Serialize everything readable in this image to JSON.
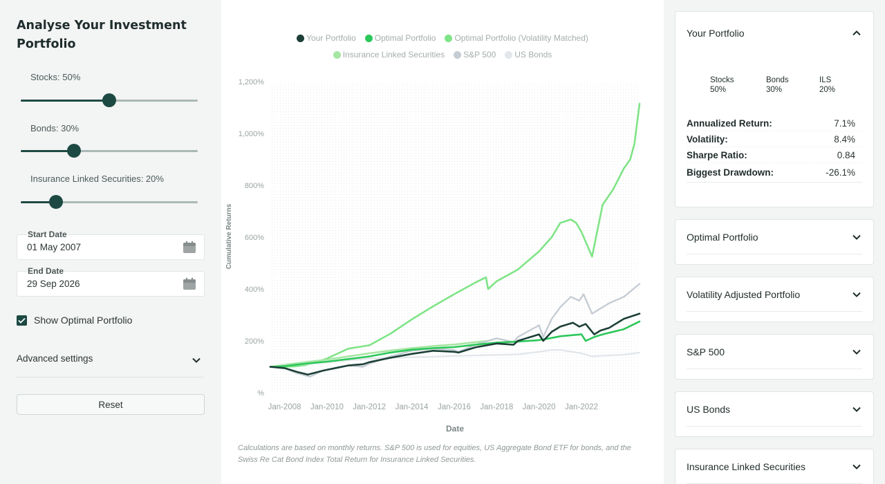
{
  "sidebar": {
    "title": "Analyse Your Investment Portfolio",
    "sliders": [
      {
        "label": "Stocks: 50%",
        "value": 50
      },
      {
        "label": "Bonds: 30%",
        "value": 30
      },
      {
        "label": "Insurance Linked Securities: 20%",
        "value": 20
      }
    ],
    "start_date": {
      "label": "Start Date",
      "value": "01 May 2007"
    },
    "end_date": {
      "label": "End Date",
      "value": "29 Sep 2026"
    },
    "show_optimal": {
      "label": "Show Optimal Portfolio",
      "checked": true
    },
    "advanced_label": "Advanced settings",
    "reset_label": "Reset"
  },
  "legend": [
    {
      "name": "Your Portfolio",
      "color": "#1c3f37"
    },
    {
      "name": "Optimal Portfolio",
      "color": "#2cc75a"
    },
    {
      "name": "Optimal Portfolio (Volatility Matched)",
      "color": "#7fe486"
    },
    {
      "name": "Insurance Linked Securities",
      "color": "#a5e6a2"
    },
    {
      "name": "S&P 500",
      "color": "#c5ccd3"
    },
    {
      "name": "US Bonds",
      "color": "#e3e6ea"
    }
  ],
  "chart_data": {
    "type": "line",
    "xlabel": "Date",
    "ylabel": "Cumulative Returns",
    "ylim": [
      0,
      1200
    ],
    "y_ticks": [
      "%",
      "200%",
      "400%",
      "600%",
      "800%",
      "1,000%",
      "1,200%"
    ],
    "x_ticks": [
      "Jan-2008",
      "Jan-2010",
      "Jan-2012",
      "Jan-2014",
      "Jan-2016",
      "Jan-2018",
      "Jan-2020",
      "Jan-2022"
    ],
    "series": [
      {
        "name": "Optimal Portfolio (Volatility Matched)",
        "color": "#7fe486",
        "x": [
          2007.33,
          2008.0,
          2008.5,
          2009.0,
          2009.5,
          2010.0,
          2011.0,
          2012.0,
          2013.0,
          2014.0,
          2015.0,
          2016.0,
          2017.0,
          2017.5,
          2017.6,
          2018.0,
          2019.0,
          2020.0,
          2020.6,
          2021.0,
          2021.5,
          2021.75,
          2022.0,
          2022.5,
          2023.0,
          2023.5,
          2024.0,
          2024.3,
          2024.5,
          2024.74
        ],
        "y": [
          100,
          100,
          102,
          107,
          118,
          132,
          170,
          183,
          228,
          283,
          333,
          380,
          425,
          445,
          400,
          430,
          475,
          545,
          600,
          655,
          668,
          655,
          620,
          525,
          725,
          785,
          865,
          900,
          960,
          1115
        ]
      },
      {
        "name": "Insurance Linked Securities",
        "color": "#a5e6a2",
        "x": [
          2007.33,
          2008.0,
          2009.0,
          2010.0,
          2011.0,
          2012.0,
          2013.0,
          2014.0,
          2015.0,
          2016.0,
          2017.0,
          2017.6
        ],
        "y": [
          100,
          108,
          118,
          128,
          140,
          152,
          163,
          172,
          180,
          186,
          195,
          200
        ]
      },
      {
        "name": "US Bonds",
        "color": "#e3e6ea",
        "x": [
          2007.33,
          2008.0,
          2009.0,
          2010.0,
          2011.0,
          2012.0,
          2013.0,
          2014.0,
          2015.0,
          2016.0,
          2017.0,
          2018.0,
          2019.0,
          2020.0,
          2020.6,
          2021.0,
          2022.0,
          2022.5,
          2023.0,
          2024.0,
          2024.74
        ],
        "y": [
          100,
          105,
          110,
          117,
          125,
          132,
          134,
          137,
          139,
          142,
          144,
          146,
          148,
          158,
          165,
          165,
          152,
          140,
          143,
          147,
          155
        ]
      },
      {
        "name": "S&P 500",
        "color": "#c5ccd3",
        "x": [
          2007.33,
          2008.0,
          2008.5,
          2009.2,
          2009.8,
          2010.5,
          2011.0,
          2011.7,
          2012.0,
          2013.0,
          2014.0,
          2015.0,
          2016.0,
          2016.2,
          2017.0,
          2018.0,
          2018.8,
          2019.0,
          2020.0,
          2020.2,
          2020.6,
          2021.0,
          2021.5,
          2021.9,
          2022.1,
          2022.5,
          2022.9,
          2023.3,
          2024.0,
          2024.74
        ],
        "y": [
          100,
          95,
          78,
          62,
          85,
          95,
          105,
          100,
          112,
          140,
          162,
          170,
          165,
          158,
          185,
          210,
          195,
          215,
          260,
          215,
          285,
          330,
          370,
          355,
          380,
          305,
          325,
          345,
          370,
          420
        ]
      },
      {
        "name": "Optimal Portfolio",
        "color": "#2cc75a",
        "x": [
          2007.33,
          2008.0,
          2009.0,
          2010.0,
          2011.0,
          2012.0,
          2013.0,
          2014.0,
          2015.0,
          2016.0,
          2017.0,
          2018.0,
          2019.0,
          2020.0,
          2020.5,
          2021.0,
          2022.0,
          2022.2,
          2022.6,
          2023.0,
          2024.0,
          2024.74
        ],
        "y": [
          100,
          103,
          112,
          120,
          130,
          140,
          155,
          166,
          172,
          176,
          185,
          193,
          197,
          203,
          210,
          218,
          225,
          200,
          215,
          225,
          245,
          275
        ]
      },
      {
        "name": "Your Portfolio",
        "color": "#1c3f37",
        "x": [
          2007.33,
          2008.0,
          2008.6,
          2009.1,
          2009.8,
          2010.5,
          2011.0,
          2011.7,
          2012.0,
          2013.0,
          2014.0,
          2015.0,
          2016.0,
          2016.2,
          2017.0,
          2018.0,
          2018.8,
          2019.0,
          2020.0,
          2020.2,
          2020.6,
          2021.0,
          2021.6,
          2021.9,
          2022.2,
          2022.6,
          2022.9,
          2023.3,
          2024.0,
          2024.74
        ],
        "y": [
          100,
          95,
          80,
          70,
          85,
          97,
          105,
          110,
          118,
          135,
          150,
          162,
          158,
          155,
          175,
          190,
          185,
          200,
          225,
          200,
          235,
          255,
          270,
          255,
          265,
          225,
          240,
          250,
          285,
          305
        ]
      }
    ]
  },
  "footnote": "Calculations are based on monthly returns. S&P 500 is used for equities, US Aggregate Bond ETF for bonds, and the Swiss Re Cat Bond Index Total Return for Insurance Linked Securities.",
  "panels": [
    {
      "title": "Your Portfolio",
      "expanded": true
    },
    {
      "title": "Optimal Portfolio"
    },
    {
      "title": "Volatility Adjusted Portfolio"
    },
    {
      "title": "S&P 500"
    },
    {
      "title": "US Bonds"
    },
    {
      "title": "Insurance Linked Securities"
    }
  ],
  "your_portfolio": {
    "allocation": [
      {
        "name": "Stocks",
        "pct": "50%"
      },
      {
        "name": "Bonds",
        "pct": "30%"
      },
      {
        "name": "ILS",
        "pct": "20%"
      }
    ],
    "stats": [
      {
        "label": "Annualized Return:",
        "value": "7.1%"
      },
      {
        "label": "Volatility:",
        "value": "8.4%"
      },
      {
        "label": "Sharpe Ratio:",
        "value": "0.84"
      },
      {
        "label": "Biggest Drawdown:",
        "value": "-26.1%"
      }
    ]
  }
}
